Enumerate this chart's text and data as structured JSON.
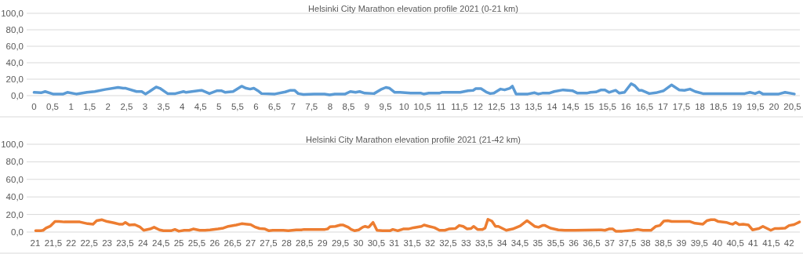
{
  "chart_data": [
    {
      "type": "line",
      "title": "Helsinki City Marathon elevation profile 2021 (0-21 km)",
      "xlim": [
        -0.2,
        20.7
      ],
      "xticks": [
        0,
        {
          "value": 0.5,
          "label": "0,5"
        },
        1,
        {
          "value": 1.5,
          "label": "1,5"
        },
        2,
        {
          "value": 2.5,
          "label": "2,5"
        },
        3,
        {
          "value": 3.5,
          "label": "3,5"
        },
        4,
        {
          "value": 4.5,
          "label": "4,5"
        },
        5,
        {
          "value": 5.5,
          "label": "5,5"
        },
        6,
        {
          "value": 6.5,
          "label": "6,5"
        },
        7,
        {
          "value": 7.5,
          "label": "7,5"
        },
        8,
        {
          "value": 8.5,
          "label": "8,5"
        },
        9,
        {
          "value": 9.5,
          "label": "9,5"
        },
        10,
        {
          "value": 10.5,
          "label": "10,5"
        },
        11,
        {
          "value": 11.5,
          "label": "11,5"
        },
        12,
        {
          "value": 12.5,
          "label": "12,5"
        },
        13,
        {
          "value": 13.5,
          "label": "13,5"
        },
        14,
        {
          "value": 14.5,
          "label": "14,5"
        },
        15,
        {
          "value": 15.5,
          "label": "15,5"
        },
        16,
        {
          "value": 16.5,
          "label": "16,5"
        },
        17,
        {
          "value": 17.5,
          "label": "17,5"
        },
        18,
        {
          "value": 18.5,
          "label": "18,5"
        },
        19,
        {
          "value": 19.5,
          "label": "19,5"
        },
        20,
        {
          "value": 20.5,
          "label": "20,5"
        }
      ],
      "ylim": [
        0,
        100
      ],
      "yticks": [
        {
          "value": 0,
          "label": "0,0"
        },
        {
          "value": 20,
          "label": "20,0"
        },
        {
          "value": 40,
          "label": "40,0"
        },
        {
          "value": 60,
          "label": "60,0"
        },
        {
          "value": 80,
          "label": "80,0"
        },
        {
          "value": 100,
          "label": "100,0"
        }
      ],
      "grid": "y",
      "series": [
        {
          "color": "#5b9bd5",
          "x": [
            0,
            0.19,
            0.3,
            0.51,
            0.79,
            0.9,
            1.14,
            1.43,
            1.64,
            1.92,
            2.27,
            2.41,
            2.48,
            2.77,
            2.91,
            3.01,
            3.12,
            3.3,
            3.4,
            3.61,
            3.82,
            4.04,
            4.11,
            4.53,
            4.74,
            4.95,
            5.06,
            5.17,
            5.38,
            5.61,
            5.73,
            5.84,
            5.94,
            6.05,
            6.15,
            6.51,
            6.79,
            6.93,
            7.04,
            7.14,
            7.28,
            7.57,
            7.85,
            7.99,
            8.13,
            8.41,
            8.55,
            8.69,
            8.8,
            8.94,
            9.19,
            9.4,
            9.51,
            9.61,
            9.75,
            9.89,
            10.18,
            10.46,
            10.53,
            10.67,
            10.95,
            11.02,
            11.52,
            11.73,
            11.87,
            11.94,
            12.08,
            12.22,
            12.33,
            12.43,
            12.61,
            12.72,
            12.86,
            12.93,
            13.03,
            13.35,
            13.53,
            13.63,
            13.74,
            13.92,
            14.06,
            14.3,
            14.55,
            14.69,
            14.94,
            15.04,
            15.19,
            15.33,
            15.43,
            15.54,
            15.72,
            15.82,
            15.96,
            16.14,
            16.24,
            16.35,
            16.42,
            16.63,
            16.81,
            17.02,
            17.23,
            17.44,
            17.58,
            17.73,
            17.87,
            18.08,
            19.21,
            19.35,
            19.49,
            19.6,
            19.7,
            20.13,
            20.3,
            20.55
          ],
          "values": [
            4,
            3.5,
            5,
            2,
            2,
            4,
            2,
            4,
            5,
            7.5,
            10,
            9,
            9,
            5,
            5,
            2,
            5,
            10.5,
            9,
            2.5,
            2.5,
            5,
            4,
            6.5,
            2.5,
            6,
            6,
            4,
            5,
            11.5,
            9,
            8,
            9,
            6,
            2.5,
            2,
            4.5,
            6.5,
            6.5,
            2.5,
            1.5,
            2,
            2,
            1,
            2,
            2,
            5,
            4,
            5,
            3,
            2.5,
            8,
            10,
            9,
            4,
            4,
            3,
            3,
            2,
            3,
            3,
            4,
            4,
            6,
            6.5,
            8.5,
            8.5,
            4.5,
            2.5,
            3,
            8,
            7,
            9,
            11.5,
            2,
            2,
            3.5,
            2,
            3,
            3,
            5,
            7,
            6,
            3,
            3,
            4,
            4.5,
            7,
            7,
            4,
            6.5,
            3,
            4,
            14.5,
            12,
            6.5,
            6.5,
            2.5,
            3.5,
            6,
            13,
            7,
            6.5,
            8,
            5,
            2.5,
            2.5,
            4,
            2.5,
            4.5,
            2,
            2,
            4,
            2
          ]
        }
      ]
    },
    {
      "type": "line",
      "title": "Helsinki City Marathon elevation profile 2021 (21-42 km)",
      "xlim": [
        20.76,
        42.3
      ],
      "xticks": [
        21,
        {
          "value": 21.5,
          "label": "21,5"
        },
        22,
        {
          "value": 22.5,
          "label": "22,5"
        },
        23,
        {
          "value": 23.5,
          "label": "23,5"
        },
        24,
        {
          "value": 24.5,
          "label": "24,5"
        },
        25,
        {
          "value": 25.5,
          "label": "25,5"
        },
        26,
        {
          "value": 26.5,
          "label": "26,5"
        },
        27,
        {
          "value": 27.5,
          "label": "27,5"
        },
        28,
        {
          "value": 28.5,
          "label": "28,5"
        },
        29,
        {
          "value": 29.5,
          "label": "29,5"
        },
        30,
        {
          "value": 30.5,
          "label": "30,5"
        },
        31,
        {
          "value": 31.5,
          "label": "31,5"
        },
        32,
        {
          "value": 32.5,
          "label": "32,5"
        },
        33,
        {
          "value": 33.5,
          "label": "33,5"
        },
        34,
        {
          "value": 34.5,
          "label": "34,5"
        },
        35,
        {
          "value": 35.5,
          "label": "35,5"
        },
        36,
        {
          "value": 36.5,
          "label": "36,5"
        },
        37,
        {
          "value": 37.5,
          "label": "37,5"
        },
        38,
        {
          "value": 38.5,
          "label": "38,5"
        },
        39,
        {
          "value": 39.5,
          "label": "39,5"
        },
        40,
        {
          "value": 40.5,
          "label": "40,5"
        },
        41,
        {
          "value": 41.5,
          "label": "41,5"
        },
        42
      ],
      "ylim": [
        0,
        100
      ],
      "yticks": [
        {
          "value": 0,
          "label": "0,0"
        },
        {
          "value": 20,
          "label": "20,0"
        },
        {
          "value": 40,
          "label": "40,0"
        },
        {
          "value": 60,
          "label": "60,0"
        },
        {
          "value": 80,
          "label": "80,0"
        },
        {
          "value": 100,
          "label": "100,0"
        }
      ],
      "grid": "y",
      "series": [
        {
          "color": "#ed7d31",
          "x": [
            21.01,
            21.15,
            21.22,
            21.3,
            21.41,
            21.44,
            21.55,
            21.66,
            21.81,
            22.24,
            22.46,
            22.61,
            22.71,
            22.86,
            23,
            23.19,
            23.33,
            23.44,
            23.51,
            23.62,
            23.77,
            23.91,
            24.02,
            24.2,
            24.31,
            24.46,
            24.57,
            24.78,
            24.89,
            25,
            25.15,
            25.29,
            25.4,
            25.58,
            25.73,
            25.87,
            26.09,
            26.24,
            26.38,
            26.6,
            26.75,
            26.89,
            27,
            27.11,
            27.25,
            27.4,
            27.51,
            27.62,
            27.91,
            28.05,
            28.27,
            28.41,
            28.49,
            29.07,
            29.14,
            29.21,
            29.36,
            29.5,
            29.58,
            29.72,
            29.8,
            29.9,
            30.01,
            30.12,
            30.19,
            30.27,
            30.3,
            30.41,
            30.52,
            30.67,
            30.88,
            30.96,
            31.1,
            31.25,
            31.39,
            31.54,
            31.76,
            31.83,
            31.97,
            32.12,
            32.26,
            32.41,
            32.52,
            32.7,
            32.81,
            32.92,
            33.03,
            33.14,
            33.21,
            33.32,
            33.46,
            33.53,
            33.61,
            33.72,
            33.82,
            33.9,
            34.12,
            34.3,
            34.51,
            34.7,
            34.91,
            35.02,
            35.13,
            35.2,
            35.35,
            35.57,
            35.75,
            35.89,
            36.04,
            36.77,
            36.87,
            36.98,
            37.09,
            37.17,
            37.35,
            37.64,
            37.78,
            37.93,
            38.15,
            38.29,
            38.4,
            38.51,
            38.62,
            38.73,
            39.24,
            39.38,
            39.6,
            39.71,
            39.82,
            39.93,
            40.03,
            40.25,
            40.36,
            40.43,
            40.51,
            40.61,
            40.72,
            40.87,
            40.98,
            41.16,
            41.27,
            41.49,
            41.6,
            41.71,
            41.89,
            42,
            42.14,
            42.29
          ],
          "values": [
            1.5,
            1.5,
            2,
            4.5,
            6.5,
            7.5,
            12,
            12,
            11.5,
            11.5,
            9.5,
            9,
            13,
            14,
            12,
            10.5,
            9,
            9,
            11,
            8,
            8.5,
            6,
            2,
            3.5,
            5.5,
            2.5,
            1.5,
            1.5,
            3,
            1,
            2,
            2,
            3.5,
            2,
            2,
            2.5,
            3.5,
            4.5,
            6.5,
            8,
            9.5,
            9,
            8.5,
            6,
            4,
            3.5,
            1.5,
            2,
            2,
            1.5,
            2.5,
            2.5,
            3,
            3,
            3.5,
            6,
            6.5,
            8,
            8,
            5.5,
            3,
            1.5,
            2.5,
            5.5,
            6.5,
            5.5,
            6,
            11,
            2,
            1.5,
            1.5,
            3,
            1.5,
            3.5,
            3.5,
            5,
            6.5,
            8,
            6.5,
            5,
            2,
            2,
            3.5,
            4,
            7.5,
            6.5,
            3.5,
            4,
            6.5,
            3,
            3,
            4.5,
            14.5,
            12.5,
            6.5,
            6.5,
            2,
            3.5,
            7,
            13,
            6.5,
            5.5,
            7.5,
            7.5,
            4.5,
            2.5,
            2,
            2,
            2,
            2.5,
            2,
            3.5,
            3.5,
            1,
            1,
            2,
            3,
            2,
            2,
            6.5,
            7.5,
            12.5,
            13,
            12,
            12,
            10,
            9,
            13,
            14,
            14,
            12,
            11,
            9.5,
            9,
            11,
            8.5,
            9,
            8,
            2.5,
            4,
            6.5,
            2,
            4,
            4,
            4.5,
            7.5,
            8.5,
            11.5
          ]
        }
      ]
    }
  ]
}
